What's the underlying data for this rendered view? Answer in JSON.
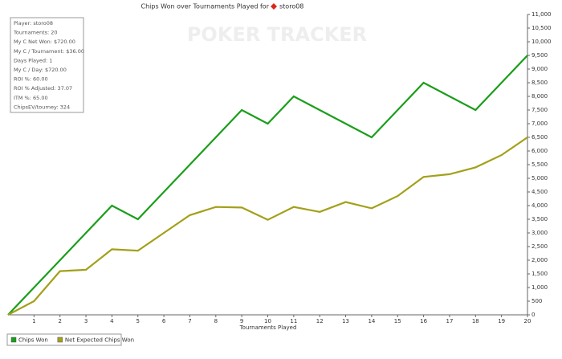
{
  "chart_data": {
    "type": "line",
    "title": "Chips Won over Tournaments Played for",
    "title_player": "storo08",
    "watermark": "POKER TRACKER",
    "x_label": "Tournaments Played",
    "x": [
      0,
      1,
      2,
      3,
      4,
      5,
      6,
      7,
      8,
      9,
      10,
      11,
      12,
      13,
      14,
      15,
      16,
      17,
      18,
      19,
      20
    ],
    "xlim": [
      0,
      20
    ],
    "xticks": [
      1,
      2,
      3,
      4,
      5,
      6,
      7,
      8,
      9,
      10,
      11,
      12,
      13,
      14,
      15,
      16,
      17,
      18,
      19,
      20
    ],
    "ylim": [
      0,
      11000
    ],
    "yticks": [
      0,
      500,
      {
        "value": 1000,
        "label": "1,000"
      },
      {
        "value": 1500,
        "label": "1,500"
      },
      {
        "value": 2000,
        "label": "2,000"
      },
      {
        "value": 2500,
        "label": "2,500"
      },
      {
        "value": 3000,
        "label": "3,000"
      },
      {
        "value": 3500,
        "label": "3,500"
      },
      {
        "value": 4000,
        "label": "4,000"
      },
      {
        "value": 4500,
        "label": "4,500"
      },
      {
        "value": 5000,
        "label": "5,000"
      },
      {
        "value": 5500,
        "label": "5,500"
      },
      {
        "value": 6000,
        "label": "6,000"
      },
      {
        "value": 6500,
        "label": "6,500"
      },
      {
        "value": 7000,
        "label": "7,000"
      },
      {
        "value": 7500,
        "label": "7,500"
      },
      {
        "value": 8000,
        "label": "8,000"
      },
      {
        "value": 8500,
        "label": "8,500"
      },
      {
        "value": 9000,
        "label": "9,000"
      },
      {
        "value": 9500,
        "label": "9,500"
      },
      {
        "value": 10000,
        "label": "10,000"
      },
      {
        "value": 10500,
        "label": "10,500"
      },
      {
        "value": 11000,
        "label": "11,000"
      }
    ],
    "grid": false,
    "legend": "bottom-left",
    "series": [
      {
        "name": "Chips Won",
        "color": "#1a9e1a",
        "values": [
          0,
          1000,
          2000,
          3000,
          4000,
          3500,
          4500,
          5500,
          6500,
          7500,
          7000,
          8000,
          7500,
          7000,
          6500,
          7500,
          8500,
          8000,
          7500,
          8500,
          9500
        ]
      },
      {
        "name": "Net Expected Chips Won",
        "color": "#a3a01a",
        "values": [
          0,
          500,
          1600,
          1650,
          2400,
          2350,
          3000,
          3650,
          3950,
          3930,
          3480,
          3950,
          3770,
          4130,
          3900,
          4350,
          5050,
          5150,
          5400,
          5850,
          6500
        ]
      }
    ],
    "stats": [
      "Player: storo08",
      "Tournaments: 20",
      "My C Net Won: $720.00",
      "My C / Tournament: $36.00",
      "Days Played: 1",
      "My C / Day: $720.00",
      "ROI %: 60.00",
      "ROI % Adjusted: 37.07",
      "ITM %: 65.00",
      "ChipsEV/tourney: 324"
    ]
  }
}
